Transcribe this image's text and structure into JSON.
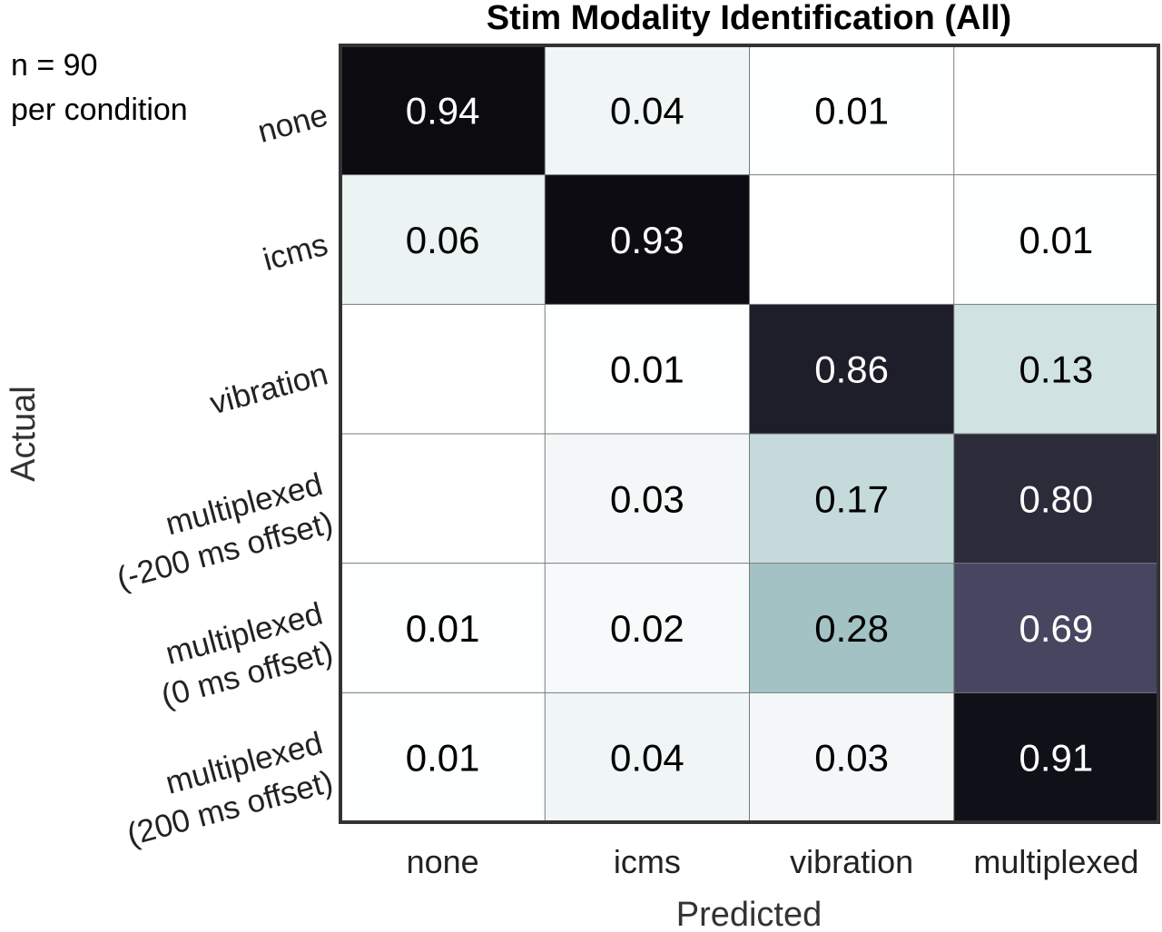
{
  "chart_data": {
    "type": "heatmap",
    "title": "Stim Modality Identification (All)",
    "annotation_lines": [
      "n = 90",
      "per condition"
    ],
    "xlabel": "Predicted",
    "ylabel": "Actual",
    "x_categories": [
      "none",
      "icms",
      "vibration",
      "multiplexed"
    ],
    "y_categories": [
      [
        "none"
      ],
      [
        "icms"
      ],
      [
        "vibration"
      ],
      [
        "multiplexed",
        "(-200 ms offset)"
      ],
      [
        "multiplexed",
        "(0 ms offset)"
      ],
      [
        "multiplexed",
        "(200 ms offset)"
      ]
    ],
    "values": [
      [
        0.94,
        0.04,
        0.01,
        null
      ],
      [
        0.06,
        0.93,
        null,
        0.01
      ],
      [
        null,
        0.01,
        0.86,
        0.13
      ],
      [
        null,
        0.03,
        0.17,
        0.8
      ],
      [
        0.01,
        0.02,
        0.28,
        0.69
      ],
      [
        0.01,
        0.04,
        0.03,
        0.91
      ]
    ],
    "value_labels": [
      [
        "0.94",
        "0.04",
        "0.01",
        ""
      ],
      [
        "0.06",
        "0.93",
        "",
        "0.01"
      ],
      [
        "",
        "0.01",
        "0.86",
        "0.13"
      ],
      [
        "",
        "0.03",
        "0.17",
        "0.80"
      ],
      [
        "0.01",
        "0.02",
        "0.28",
        "0.69"
      ],
      [
        "0.01",
        "0.04",
        "0.03",
        "0.91"
      ]
    ],
    "colors": {
      "cell_fill": {
        "0.94": "#0b0b10",
        "0.93": "#0c0c12",
        "0.91": "#101018",
        "0.86": "#1e1e2a",
        "0.80": "#2b2b3a",
        "0.69": "#464660",
        "0.28": "#a3c2c3",
        "0.17": "#c5dadb",
        "0.13": "#d0e2e2",
        "0.06": "#ecf3f3",
        "0.04": "#f0f5f5",
        "0.03": "#f3f7f7",
        "0.02": "#f7fafa",
        "0.01": "#fdfefe",
        "empty": "#ffffff"
      },
      "dark_text": "#000000",
      "light_text": "#ffffff",
      "grid": "#7a7a7a",
      "border": "#333333"
    }
  }
}
